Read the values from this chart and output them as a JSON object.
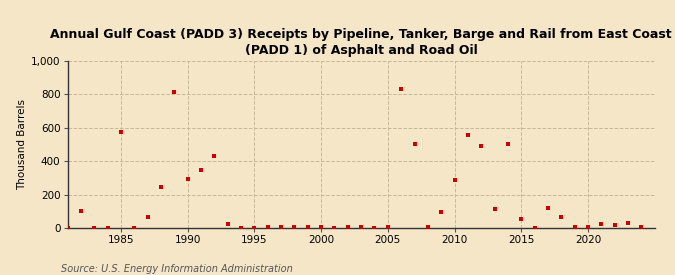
{
  "title": "Annual Gulf Coast (PADD 3) Receipts by Pipeline, Tanker, Barge and Rail from East Coast\n(PADD 1) of Asphalt and Road Oil",
  "ylabel": "Thousand Barrels",
  "source": "Source: U.S. Energy Information Administration",
  "background_color": "#f5e6c8",
  "plot_bg_color": "#f5e6c8",
  "marker_color": "#cc0000",
  "xlim": [
    1981,
    2025
  ],
  "ylim": [
    0,
    1000
  ],
  "yticks": [
    0,
    200,
    400,
    600,
    800,
    1000
  ],
  "xticks": [
    1985,
    1990,
    1995,
    2000,
    2005,
    2010,
    2015,
    2020
  ],
  "years": [
    1981,
    1982,
    1983,
    1984,
    1985,
    1986,
    1987,
    1988,
    1989,
    1990,
    1991,
    1992,
    1993,
    1994,
    1995,
    1996,
    1997,
    1998,
    1999,
    2000,
    2001,
    2002,
    2003,
    2004,
    2005,
    2006,
    2007,
    2008,
    2009,
    2010,
    2011,
    2012,
    2013,
    2014,
    2015,
    2016,
    2017,
    2018,
    2019,
    2020,
    2021,
    2022,
    2023,
    2024
  ],
  "values": [
    0,
    100,
    0,
    0,
    575,
    0,
    65,
    245,
    810,
    295,
    345,
    430,
    25,
    0,
    0,
    5,
    5,
    5,
    5,
    5,
    0,
    5,
    5,
    0,
    5,
    830,
    500,
    5,
    95,
    290,
    555,
    490,
    115,
    500,
    55,
    0,
    120,
    65,
    10,
    5,
    25,
    20,
    30,
    5
  ]
}
